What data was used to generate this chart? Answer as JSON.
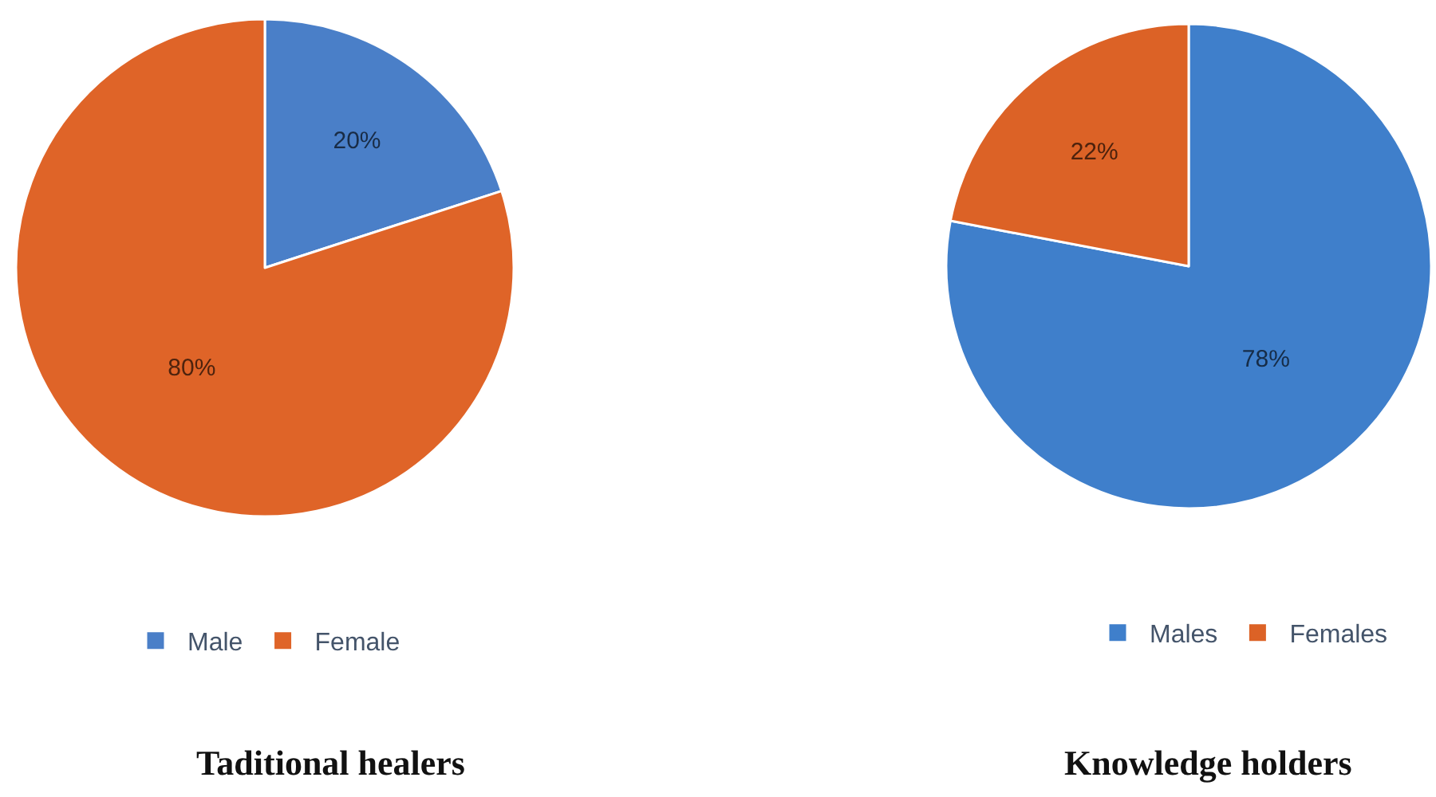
{
  "chart_data": [
    {
      "type": "pie",
      "title": "Taditional healers",
      "categories": [
        "Male",
        "Female"
      ],
      "values": [
        20,
        80
      ],
      "colors": [
        "#4a7fc8",
        "#df6428"
      ],
      "value_labels": [
        "20%",
        "80%"
      ],
      "legend": "bottom"
    },
    {
      "type": "pie",
      "title": "Knowledge holders",
      "categories": [
        "Males",
        "Females"
      ],
      "values": [
        78,
        22
      ],
      "colors": [
        "#3f7fcb",
        "#dc6226"
      ],
      "value_labels": [
        "78%",
        "22%"
      ],
      "legend": "bottom"
    }
  ]
}
